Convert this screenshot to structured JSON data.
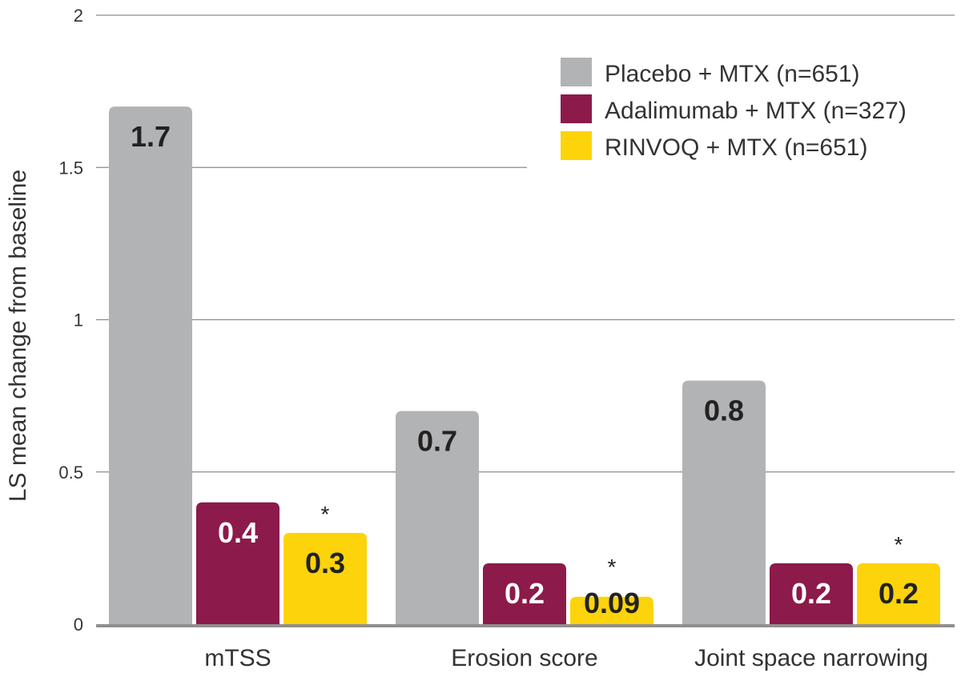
{
  "chart_data": {
    "type": "bar",
    "title": "",
    "xlabel": "",
    "ylabel": "LS mean change from baseline",
    "ylim": [
      0,
      2
    ],
    "yticks": [
      0,
      0.5,
      1,
      1.5,
      2
    ],
    "ytick_labels": [
      "0",
      "0.5",
      "1",
      "1.5",
      "2"
    ],
    "grid": true,
    "legend_position": "top-right",
    "categories": [
      "mTSS",
      "Erosion score",
      "Joint space narrowing"
    ],
    "series": [
      {
        "name": "Placebo + MTX (n=651)",
        "color": "#b2b3b5",
        "label_color": "#222222",
        "values": [
          1.7,
          0.7,
          0.8
        ],
        "labels": [
          "1.7",
          "0.7",
          "0.8"
        ]
      },
      {
        "name": "Adalimumab + MTX (n=327)",
        "color": "#8c1a4b",
        "label_color": "#ffffff",
        "values": [
          0.4,
          0.2,
          0.2
        ],
        "labels": [
          "0.4",
          "0.2",
          "0.2"
        ]
      },
      {
        "name": "RINVOQ + MTX (n=651)",
        "color": "#fdd30b",
        "label_color": "#222222",
        "values": [
          0.3,
          0.09,
          0.2
        ],
        "labels": [
          "0.3",
          "0.09",
          "0.2"
        ],
        "annotation": "*"
      }
    ]
  }
}
